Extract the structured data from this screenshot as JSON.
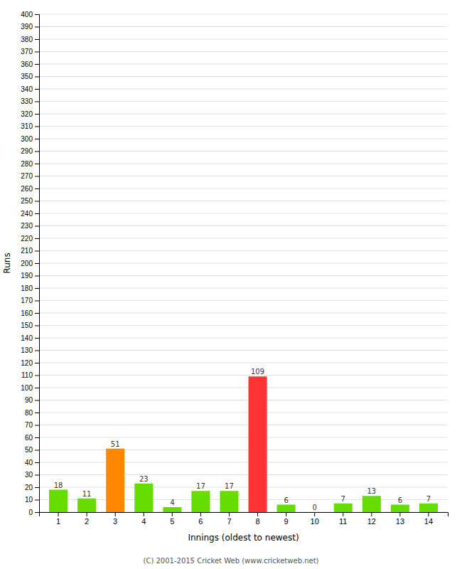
{
  "chart_data": {
    "type": "bar",
    "categories": [
      "1",
      "2",
      "3",
      "4",
      "5",
      "6",
      "7",
      "8",
      "9",
      "10",
      "11",
      "12",
      "13",
      "14"
    ],
    "values": [
      18,
      11,
      51,
      23,
      4,
      17,
      17,
      109,
      6,
      0,
      7,
      13,
      6,
      7
    ],
    "colors": [
      "#66dd00",
      "#66dd00",
      "#ff8800",
      "#66dd00",
      "#66dd00",
      "#66dd00",
      "#66dd00",
      "#ff3333",
      "#66dd00",
      "#66dd00",
      "#66dd00",
      "#66dd00",
      "#66dd00",
      "#66dd00"
    ],
    "x_label": "Innings (oldest to newest)",
    "y_label": "Runs",
    "ylim": [
      0,
      400
    ],
    "yticks": [
      0,
      10,
      20,
      30,
      40,
      50,
      60,
      70,
      80,
      90,
      100,
      110,
      120,
      130,
      140,
      150,
      160,
      170,
      180,
      190,
      200,
      210,
      220,
      230,
      240,
      250,
      260,
      270,
      280,
      290,
      300,
      310,
      320,
      330,
      340,
      350,
      360,
      370,
      380,
      390,
      400
    ],
    "grid": true,
    "data_labels": true,
    "annotations": [
      "(C) 2001-2015 Cricket Web (www.cricketweb.net)"
    ]
  }
}
